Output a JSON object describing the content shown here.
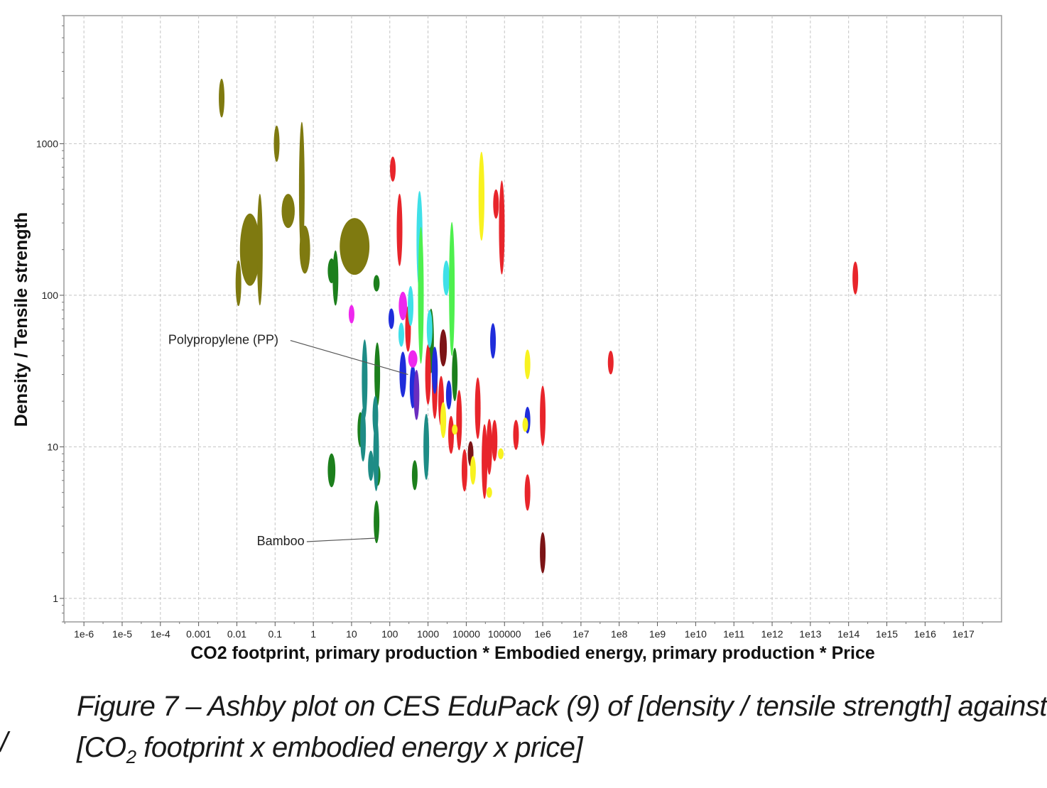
{
  "chart_data": {
    "type": "scatter",
    "title": "",
    "xlabel": "CO2 footprint, primary production * Embodied energy, primary production * Price",
    "ylabel": "Density / Tensile strength",
    "x_scale": "log",
    "y_scale": "log",
    "xlim": [
      3e-07,
      1e+18
    ],
    "ylim": [
      0.7,
      7000
    ],
    "grid": true,
    "x_ticks": [
      {
        "value": 1e-06,
        "label": "1e-6"
      },
      {
        "value": 1e-05,
        "label": "1e-5"
      },
      {
        "value": 0.0001,
        "label": "1e-4"
      },
      {
        "value": 0.001,
        "label": "0.001"
      },
      {
        "value": 0.01,
        "label": "0.01"
      },
      {
        "value": 0.1,
        "label": "0.1"
      },
      {
        "value": 1,
        "label": "1"
      },
      {
        "value": 10,
        "label": "10"
      },
      {
        "value": 100,
        "label": "100"
      },
      {
        "value": 1000,
        "label": "1000"
      },
      {
        "value": 10000,
        "label": "10000"
      },
      {
        "value": 100000,
        "label": "100000"
      },
      {
        "value": 1000000.0,
        "label": "1e6"
      },
      {
        "value": 10000000.0,
        "label": "1e7"
      },
      {
        "value": 100000000.0,
        "label": "1e8"
      },
      {
        "value": 1000000000.0,
        "label": "1e9"
      },
      {
        "value": 10000000000.0,
        "label": "1e10"
      },
      {
        "value": 100000000000.0,
        "label": "1e11"
      },
      {
        "value": 1000000000000.0,
        "label": "1e12"
      },
      {
        "value": 10000000000000.0,
        "label": "1e13"
      },
      {
        "value": 100000000000000.0,
        "label": "1e14"
      },
      {
        "value": 1000000000000000.0,
        "label": "1e15"
      },
      {
        "value": 1e+16,
        "label": "1e16"
      },
      {
        "value": 1e+17,
        "label": "1e17"
      }
    ],
    "y_ticks": [
      {
        "value": 1,
        "label": "1"
      },
      {
        "value": 10,
        "label": "10"
      },
      {
        "value": 100,
        "label": "100"
      },
      {
        "value": 1000,
        "label": "1000"
      }
    ],
    "colors": {
      "olive": "#7f7a10",
      "dark_green": "#1c7f1c",
      "teal": "#1e8c86",
      "red": "#e8252b",
      "maroon": "#7c1416",
      "blue": "#1f2ddb",
      "cyan": "#3fe0e8",
      "magenta": "#ee28ee",
      "light_green": "#4ef04e",
      "yellow": "#f8f220",
      "purple": "#6a2dbf"
    },
    "bubbles": [
      {
        "x": 0.004,
        "y": 2000,
        "x_span": [
          0.0035,
          0.0048
        ],
        "y_span": [
          1500,
          2700
        ],
        "color": "olive"
      },
      {
        "x": 0.11,
        "y": 1000,
        "x_span": [
          0.095,
          0.13
        ],
        "y_span": [
          750,
          1300
        ],
        "color": "olive"
      },
      {
        "x": 0.5,
        "y": 500,
        "x_span": [
          0.46,
          0.54
        ],
        "y_span": [
          180,
          1400
        ],
        "color": "olive"
      },
      {
        "x": 0.022,
        "y": 200,
        "x_span": [
          0.012,
          0.04
        ],
        "y_span": [
          110,
          330
        ],
        "color": "olive"
      },
      {
        "x": 0.04,
        "y": 200,
        "x_span": [
          0.035,
          0.047
        ],
        "y_span": [
          110,
          600
        ],
        "color": "olive"
      },
      {
        "x": 0.011,
        "y": 120,
        "x_span": [
          0.0095,
          0.012
        ],
        "y_span": [
          90,
          180
        ],
        "color": "olive"
      },
      {
        "x": 0.22,
        "y": 360,
        "x_span": [
          0.15,
          0.33
        ],
        "y_span": [
          280,
          470
        ],
        "color": "olive"
      },
      {
        "x": 0.6,
        "y": 200,
        "x_span": [
          0.45,
          0.85
        ],
        "y_span": [
          140,
          290
        ],
        "color": "olive"
      },
      {
        "x": 12,
        "y": 210,
        "x_span": [
          5,
          30
        ],
        "y_span": [
          135,
          320
        ],
        "color": "olive"
      },
      {
        "x": 3,
        "y": 145,
        "x_span": [
          2.4,
          3.8
        ],
        "y_span": [
          120,
          175
        ],
        "color": "dark_green"
      },
      {
        "x": 3.8,
        "y": 130,
        "x_span": [
          3.4,
          4.3
        ],
        "y_span": [
          80,
          185
        ],
        "color": "dark_green"
      },
      {
        "x": 45,
        "y": 120,
        "x_span": [
          38,
          55
        ],
        "y_span": [
          105,
          135
        ],
        "color": "dark_green"
      },
      {
        "x": 3,
        "y": 7,
        "x_span": [
          2.4,
          3.8
        ],
        "y_span": [
          5.5,
          9.2
        ],
        "color": "dark_green"
      },
      {
        "x": 47,
        "y": 30,
        "x_span": [
          43,
          52
        ],
        "y_span": [
          17,
          45
        ],
        "color": "dark_green"
      },
      {
        "x": 17,
        "y": 13,
        "x_span": [
          15.5,
          19
        ],
        "y_span": [
          10,
          17
        ],
        "color": "dark_green"
      },
      {
        "x": 45,
        "y": 3.2,
        "x_span": [
          39,
          52
        ],
        "y_span": [
          2.3,
          4.4
        ],
        "color": "dark_green"
      },
      {
        "x": 48,
        "y": 6.5,
        "x_span": [
          44,
          53
        ],
        "y_span": [
          5.5,
          7.6
        ],
        "color": "dark_green"
      },
      {
        "x": 450,
        "y": 6.5,
        "x_span": [
          400,
          510
        ],
        "y_span": [
          5.2,
          8.2
        ],
        "color": "dark_green"
      },
      {
        "x": 5000,
        "y": 30,
        "x_span": [
          4400,
          5800
        ],
        "y_span": [
          20,
          45
        ],
        "color": "dark_green"
      },
      {
        "x": 1200,
        "y": 50,
        "x_span": [
          1050,
          1400
        ],
        "y_span": [
          30,
          80
        ],
        "color": "dark_green"
      },
      {
        "x": 22,
        "y": 28,
        "x_span": [
          19,
          25
        ],
        "y_span": [
          12,
          40
        ],
        "color": "teal"
      },
      {
        "x": 20,
        "y": 12,
        "x_span": [
          17,
          23
        ],
        "y_span": [
          8,
          18
        ],
        "color": "teal"
      },
      {
        "x": 42,
        "y": 16,
        "x_span": [
          37,
          47
        ],
        "y_span": [
          12,
          22
        ],
        "color": "teal"
      },
      {
        "x": 44,
        "y": 9,
        "x_span": [
          39,
          50
        ],
        "y_span": [
          4.5,
          14
        ],
        "color": "teal"
      },
      {
        "x": 900,
        "y": 10,
        "x_span": [
          800,
          1000
        ],
        "y_span": [
          5.5,
          15
        ],
        "color": "teal"
      },
      {
        "x": 32,
        "y": 7.5,
        "x_span": [
          29,
          36
        ],
        "y_span": [
          6,
          9.5
        ],
        "color": "teal"
      },
      {
        "x": 120,
        "y": 680,
        "x_span": [
          105,
          140
        ],
        "y_span": [
          560,
          820
        ],
        "color": "red"
      },
      {
        "x": 180,
        "y": 270,
        "x_span": [
          165,
          200
        ],
        "y_span": [
          150,
          450
        ],
        "color": "red"
      },
      {
        "x": 60000,
        "y": 400,
        "x_span": [
          52000,
          69000
        ],
        "y_span": [
          320,
          500
        ],
        "color": "red"
      },
      {
        "x": 85000,
        "y": 280,
        "x_span": [
          75000,
          95000
        ],
        "y_span": [
          120,
          500
        ],
        "color": "red"
      },
      {
        "x": 300,
        "y": 60,
        "x_span": [
          260,
          350
        ],
        "y_span": [
          40,
          80
        ],
        "color": "red"
      },
      {
        "x": 1000,
        "y": 30,
        "x_span": [
          860,
          1160
        ],
        "y_span": [
          18,
          45
        ],
        "color": "red"
      },
      {
        "x": 1500,
        "y": 25,
        "x_span": [
          1300,
          1750
        ],
        "y_span": [
          15,
          40
        ],
        "color": "red"
      },
      {
        "x": 2200,
        "y": 20,
        "x_span": [
          1900,
          2500
        ],
        "y_span": [
          13,
          28
        ],
        "color": "red"
      },
      {
        "x": 4000,
        "y": 12,
        "x_span": [
          3500,
          4600
        ],
        "y_span": [
          9,
          16
        ],
        "color": "red"
      },
      {
        "x": 6500,
        "y": 15,
        "x_span": [
          5700,
          7400
        ],
        "y_span": [
          10,
          25
        ],
        "color": "red"
      },
      {
        "x": 9000,
        "y": 7,
        "x_span": [
          7900,
          10300
        ],
        "y_span": [
          5,
          9.5
        ],
        "color": "red"
      },
      {
        "x": 20000,
        "y": 18,
        "x_span": [
          17500,
          23000
        ],
        "y_span": [
          11,
          28
        ],
        "color": "red"
      },
      {
        "x": 30000,
        "y": 8,
        "x_span": [
          26000,
          34000
        ],
        "y_span": [
          4.5,
          14
        ],
        "color": "red"
      },
      {
        "x": 40000,
        "y": 10,
        "x_span": [
          35000,
          46000
        ],
        "y_span": [
          6,
          14
        ],
        "color": "red"
      },
      {
        "x": 55000,
        "y": 11,
        "x_span": [
          48000,
          62000
        ],
        "y_span": [
          8,
          15
        ],
        "color": "red"
      },
      {
        "x": 200000,
        "y": 12,
        "x_span": [
          175000,
          228000
        ],
        "y_span": [
          9.5,
          15
        ],
        "color": "red"
      },
      {
        "x": 400000,
        "y": 5,
        "x_span": [
          355000,
          450000
        ],
        "y_span": [
          3.8,
          6.6
        ],
        "color": "red"
      },
      {
        "x": 1000000,
        "y": 16,
        "x_span": [
          880000,
          1130000
        ],
        "y_span": [
          10,
          25
        ],
        "color": "red"
      },
      {
        "x": 60000000,
        "y": 36,
        "x_span": [
          52000000,
          68000000
        ],
        "y_span": [
          30,
          43
        ],
        "color": "red"
      },
      {
        "x": 150000000000000,
        "y": 130,
        "x_span": [
          130000000000000,
          170000000000000
        ],
        "y_span": [
          100,
          165
        ],
        "color": "red"
      },
      {
        "x": 2500,
        "y": 45,
        "x_span": [
          2000,
          3100
        ],
        "y_span": [
          33,
          58
        ],
        "color": "maroon"
      },
      {
        "x": 13000,
        "y": 9,
        "x_span": [
          11000,
          15000
        ],
        "y_span": [
          7.5,
          11
        ],
        "color": "maroon"
      },
      {
        "x": 1000000,
        "y": 2,
        "x_span": [
          920000,
          1090000
        ],
        "y_span": [
          1.5,
          2.8
        ],
        "color": "maroon"
      },
      {
        "x": 110,
        "y": 70,
        "x_span": [
          97,
          125
        ],
        "y_span": [
          60,
          82
        ],
        "color": "blue"
      },
      {
        "x": 50000,
        "y": 50,
        "x_span": [
          44000,
          57000
        ],
        "y_span": [
          38,
          65
        ],
        "color": "blue"
      },
      {
        "x": 220,
        "y": 30,
        "x_span": [
          180,
          270
        ],
        "y_span": [
          20,
          40
        ],
        "color": "blue"
      },
      {
        "x": 400,
        "y": 25,
        "x_span": [
          330,
          480
        ],
        "y_span": [
          18,
          35
        ],
        "color": "blue"
      },
      {
        "x": 1500,
        "y": 32,
        "x_span": [
          1250,
          1800
        ],
        "y_span": [
          22,
          45
        ],
        "color": "blue"
      },
      {
        "x": 3500,
        "y": 22,
        "x_span": [
          3000,
          4000
        ],
        "y_span": [
          18,
          28
        ],
        "color": "blue"
      },
      {
        "x": 400000,
        "y": 15,
        "x_span": [
          360000,
          440000
        ],
        "y_span": [
          12,
          18
        ],
        "color": "blue"
      },
      {
        "x": 600,
        "y": 230,
        "x_span": [
          500,
          720
        ],
        "y_span": [
          100,
          450
        ],
        "color": "cyan"
      },
      {
        "x": 3000,
        "y": 130,
        "x_span": [
          2500,
          3700
        ],
        "y_span": [
          100,
          170
        ],
        "color": "cyan"
      },
      {
        "x": 350,
        "y": 85,
        "x_span": [
          300,
          410
        ],
        "y_span": [
          60,
          110
        ],
        "color": "cyan"
      },
      {
        "x": 1100,
        "y": 60,
        "x_span": [
          950,
          1250
        ],
        "y_span": [
          45,
          80
        ],
        "color": "cyan"
      },
      {
        "x": 200,
        "y": 55,
        "x_span": [
          180,
          220
        ],
        "y_span": [
          45,
          65
        ],
        "color": "cyan"
      },
      {
        "x": 10,
        "y": 75,
        "x_span": [
          8.8,
          11.3
        ],
        "y_span": [
          65,
          86
        ],
        "color": "magenta"
      },
      {
        "x": 220,
        "y": 85,
        "x_span": [
          170,
          280
        ],
        "y_span": [
          68,
          105
        ],
        "color": "magenta"
      },
      {
        "x": 400,
        "y": 38,
        "x_span": [
          300,
          520
        ],
        "y_span": [
          33,
          43
        ],
        "color": "magenta"
      },
      {
        "x": 650,
        "y": 100,
        "x_span": [
          580,
          730
        ],
        "y_span": [
          25,
          200
        ],
        "color": "light_green"
      },
      {
        "x": 4200,
        "y": 110,
        "x_span": [
          3700,
          4800
        ],
        "y_span": [
          30,
          230
        ],
        "color": "light_green"
      },
      {
        "x": 25000,
        "y": 450,
        "x_span": [
          21000,
          30000
        ],
        "y_span": [
          220,
          850
        ],
        "color": "yellow"
      },
      {
        "x": 2500,
        "y": 15,
        "x_span": [
          2100,
          3000
        ],
        "y_span": [
          11,
          19
        ],
        "color": "yellow"
      },
      {
        "x": 15000,
        "y": 7,
        "x_span": [
          13000,
          17000
        ],
        "y_span": [
          5.5,
          8.5
        ],
        "color": "yellow"
      },
      {
        "x": 40000,
        "y": 5,
        "x_span": [
          35000,
          46000
        ],
        "y_span": [
          4.6,
          5.4
        ],
        "color": "yellow"
      },
      {
        "x": 80000,
        "y": 9,
        "x_span": [
          70000,
          90000
        ],
        "y_span": [
          8.3,
          9.8
        ],
        "color": "yellow"
      },
      {
        "x": 400000,
        "y": 35,
        "x_span": [
          350000,
          460000
        ],
        "y_span": [
          28,
          44
        ],
        "color": "yellow"
      },
      {
        "x": 350000,
        "y": 14,
        "x_span": [
          310000,
          390000
        ],
        "y_span": [
          12.5,
          15.5
        ],
        "color": "yellow"
      },
      {
        "x": 5000,
        "y": 13,
        "x_span": [
          4500,
          5600
        ],
        "y_span": [
          12,
          14
        ],
        "color": "yellow"
      },
      {
        "x": 500,
        "y": 22,
        "x_span": [
          430,
          580
        ],
        "y_span": [
          14,
          30
        ],
        "color": "purple"
      }
    ],
    "annotations": [
      {
        "text": "Polypropylene (PP)",
        "point": {
          "x": 300,
          "y": 30
        }
      },
      {
        "text": "Bamboo",
        "point": {
          "x": 45,
          "y": 2.5
        }
      }
    ]
  },
  "caption": {
    "line1": "Figure 7 – Ashby plot on CES EduPack (9) of [density / tensile strength] against",
    "line2_prefix": "[CO",
    "line2_sub": "2",
    "line2_suffix": " footprint x embodied energy x price]"
  },
  "stray_mark": "/"
}
